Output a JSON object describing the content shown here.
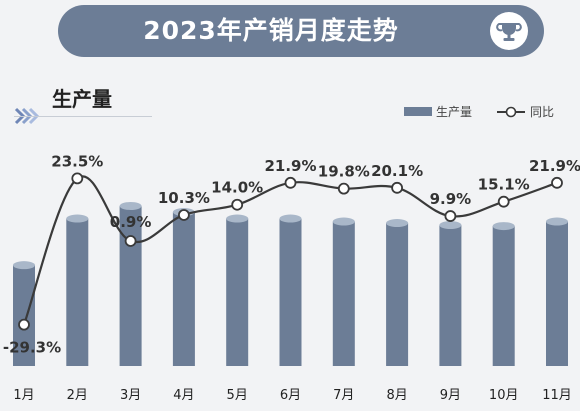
{
  "header": {
    "title": "2023年产销月度走势",
    "badge_icon": "trophy-icon"
  },
  "section": {
    "title": "生产量",
    "icon": "double-chevron-icon"
  },
  "legend": {
    "bar_label": "生产量",
    "line_label": "同比"
  },
  "colors": {
    "bar": "#6c7d96",
    "bar_top": "#a9b7c9",
    "line": "#3a3a3a",
    "title_bg": "#6c7d96"
  },
  "chart_data": {
    "type": "bar",
    "categories": [
      "1月",
      "2月",
      "3月",
      "4月",
      "5月",
      "6月",
      "7月",
      "8月",
      "9月",
      "10月",
      "11月"
    ],
    "series": [
      {
        "name": "生产量",
        "type": "bar",
        "values": [
          20.1,
          29.4,
          31.9,
          30.7,
          29.4,
          29.4,
          28.8,
          28.5,
          28.1,
          27.9,
          28.8
        ]
      },
      {
        "name": "同比",
        "type": "line",
        "values": [
          -29.3,
          23.5,
          0.9,
          10.3,
          14.0,
          21.9,
          19.8,
          20.1,
          9.9,
          15.1,
          21.9
        ],
        "labels": [
          "-29.3%",
          "23.5%",
          "0.9%",
          "10.3%",
          "14.0%",
          "21.9%",
          "19.8%",
          "20.1%",
          "9.9%",
          "15.1%",
          "21.9%"
        ]
      }
    ],
    "xlabel": "",
    "ylabel": "",
    "legend_position": "top-right",
    "grid": false
  }
}
